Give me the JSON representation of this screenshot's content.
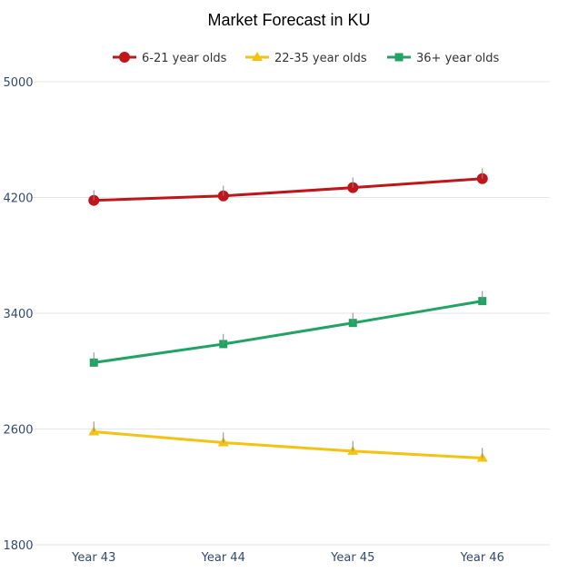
{
  "chart_data": {
    "type": "line",
    "title": "Market Forecast in KU",
    "xlabel": "",
    "ylabel": "",
    "categories": [
      "Year 43",
      "Year 44",
      "Year 45",
      "Year 46"
    ],
    "ylim": [
      1800,
      5000
    ],
    "yticks": [
      1800,
      2600,
      3400,
      4200,
      5000
    ],
    "grid": true,
    "legend_position": "top",
    "series": [
      {
        "name": "6-21 year olds",
        "values": [
          4180,
          4211,
          4268,
          4330
        ],
        "error_plus": [
          70,
          70,
          70,
          70
        ],
        "color": "#c0151a",
        "marker": "circle"
      },
      {
        "name": "22-35 year olds",
        "values": [
          2581,
          2506,
          2447,
          2399
        ],
        "error_plus": [
          70,
          70,
          70,
          70
        ],
        "color": "#f5c20f",
        "marker": "triangle"
      },
      {
        "name": "36+ year olds",
        "values": [
          3059,
          3187,
          3333,
          3484
        ],
        "error_plus": [
          70,
          70,
          70,
          70
        ],
        "color": "#20a463",
        "marker": "square"
      }
    ]
  }
}
